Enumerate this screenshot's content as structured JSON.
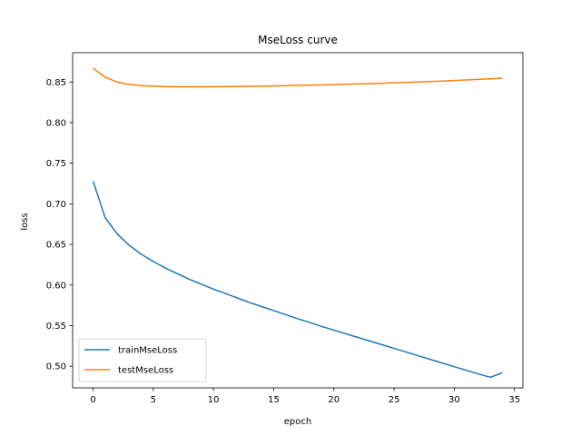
{
  "chart_data": {
    "type": "line",
    "title": "MseLoss curve",
    "xlabel": "epoch",
    "ylabel": "loss",
    "xlim": [
      -1.7,
      35.7
    ],
    "ylim": [
      0.4734,
      0.8861
    ],
    "xticks": [
      0,
      5,
      10,
      15,
      20,
      25,
      30,
      35
    ],
    "yticks": [
      0.5,
      0.55,
      0.6,
      0.65,
      0.7,
      0.75,
      0.8,
      0.85
    ],
    "ytick_labels": [
      "0.50",
      "0.55",
      "0.60",
      "0.65",
      "0.70",
      "0.75",
      "0.80",
      "0.85"
    ],
    "grid": false,
    "legend_position": "lower-left",
    "x": [
      0,
      1,
      2,
      3,
      4,
      5,
      6,
      7,
      8,
      9,
      10,
      11,
      12,
      13,
      14,
      15,
      16,
      17,
      18,
      19,
      20,
      21,
      22,
      23,
      24,
      25,
      26,
      27,
      28,
      29,
      30,
      31,
      32,
      33,
      34
    ],
    "series": [
      {
        "name": "trainMseLoss",
        "color": "#1f77b4",
        "values": [
          0.728,
          0.683,
          0.663,
          0.649,
          0.638,
          0.629,
          0.621,
          0.614,
          0.607,
          0.601,
          0.595,
          0.5895,
          0.584,
          0.5785,
          0.5735,
          0.5685,
          0.5635,
          0.5585,
          0.554,
          0.549,
          0.5445,
          0.54,
          0.5355,
          0.531,
          0.5265,
          0.522,
          0.5175,
          0.513,
          0.5085,
          0.504,
          0.4995,
          0.495,
          0.4905,
          0.4865,
          0.492
        ]
      },
      {
        "name": "testMseLoss",
        "color": "#ff7f0e",
        "values": [
          0.867,
          0.856,
          0.85,
          0.847,
          0.8455,
          0.8448,
          0.8443,
          0.8441,
          0.8441,
          0.8441,
          0.8442,
          0.8443,
          0.8445,
          0.8447,
          0.8449,
          0.8452,
          0.8455,
          0.8458,
          0.8461,
          0.8464,
          0.8468,
          0.8472,
          0.8476,
          0.848,
          0.8485,
          0.849,
          0.8495,
          0.85,
          0.8506,
          0.8512,
          0.8518,
          0.8525,
          0.8532,
          0.8539,
          0.8547
        ]
      }
    ]
  }
}
